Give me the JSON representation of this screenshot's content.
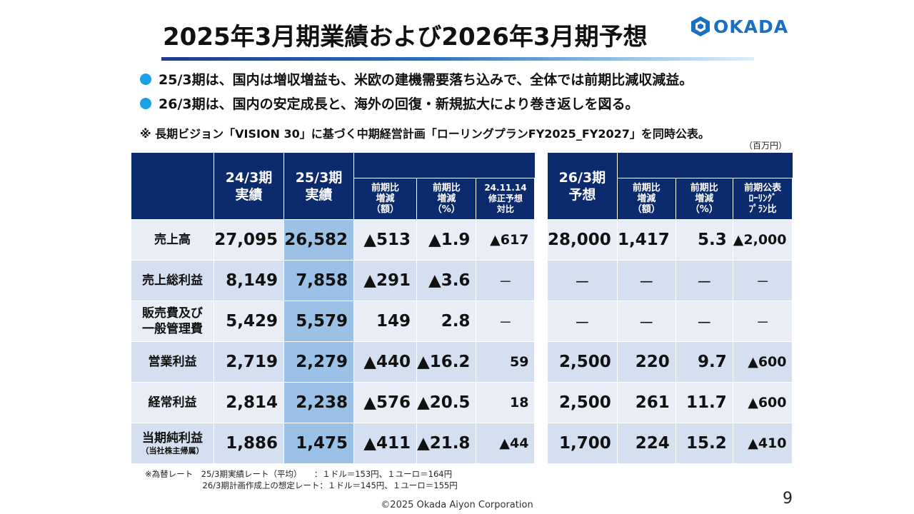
{
  "title": "2025年3月期業績および2026年3月期予想",
  "logo": {
    "text": "OKADA",
    "icon": "okada-hexagon-logo-icon",
    "color": "#1a6fc0"
  },
  "bullets": [
    "25/3期は、国内は増収増益も、米欧の建機需要落ち込みで、全体では前期比減収減益。",
    "26/3期は、国内の安定成長と、海外の回復・新規拡大により巻き返しを図る。"
  ],
  "note": "※ 長期ビジョン「VISION 30」に基づく中期経営計画「ローリングプランFY2025_FY2027」を同時公表。",
  "unit": "（百万円）",
  "left_table": {
    "headers": {
      "fy24_l1": "24/3期",
      "fy24_l2": "実績",
      "fy25_l1": "25/3期",
      "fy25_l2": "実績",
      "diff_amt_l1": "前期比",
      "diff_amt_l2": "増減",
      "diff_amt_l3": "（額）",
      "diff_pct_l1": "前期比",
      "diff_pct_l2": "増減",
      "diff_pct_l3": "（%）",
      "rev_l1": "24.11.14",
      "rev_l2": "修正予想",
      "rev_l3": "対比"
    },
    "rows": [
      {
        "label": "売上高",
        "label2": "",
        "fy24": "27,095",
        "fy25": "26,582",
        "diff_amt": "▲513",
        "diff_pct": "▲1.9",
        "vs_rev": "▲617"
      },
      {
        "label": "売上総利益",
        "label2": "",
        "fy24": "8,149",
        "fy25": "7,858",
        "diff_amt": "▲291",
        "diff_pct": "▲3.6",
        "vs_rev": "－"
      },
      {
        "label": "販売費及び",
        "label2": "一般管理費",
        "fy24": "5,429",
        "fy25": "5,579",
        "diff_amt": "149",
        "diff_pct": "2.8",
        "vs_rev": "－"
      },
      {
        "label": "営業利益",
        "label2": "",
        "fy24": "2,719",
        "fy25": "2,279",
        "diff_amt": "▲440",
        "diff_pct": "▲16.2",
        "vs_rev": "59"
      },
      {
        "label": "経常利益",
        "label2": "",
        "fy24": "2,814",
        "fy25": "2,238",
        "diff_amt": "▲576",
        "diff_pct": "▲20.5",
        "vs_rev": "18"
      },
      {
        "label": "当期純利益",
        "label2": "（当社株主帰属）",
        "fy24": "1,886",
        "fy25": "1,475",
        "diff_amt": "▲411",
        "diff_pct": "▲21.8",
        "vs_rev": "▲44"
      }
    ]
  },
  "right_table": {
    "headers": {
      "fy26_l1": "26/3期",
      "fy26_l2": "予想",
      "diff_amt_l1": "前期比",
      "diff_amt_l2": "増減",
      "diff_amt_l3": "（額）",
      "diff_pct_l1": "前期比",
      "diff_pct_l2": "増減",
      "diff_pct_l3": "（%）",
      "plan_l1": "前期公表",
      "plan_l2": "ﾛｰﾘﾝｸﾞ",
      "plan_l3": "ﾌﾟﾗﾝ比"
    },
    "rows": [
      {
        "fy26": "28,000",
        "diff_amt": "1,417",
        "diff_pct": "5.3",
        "vs_plan": "▲2,000"
      },
      {
        "fy26": "－",
        "diff_amt": "－",
        "diff_pct": "－",
        "vs_plan": "－"
      },
      {
        "fy26": "－",
        "diff_amt": "－",
        "diff_pct": "－",
        "vs_plan": "－"
      },
      {
        "fy26": "2,500",
        "diff_amt": "220",
        "diff_pct": "9.7",
        "vs_plan": "▲600"
      },
      {
        "fy26": "2,500",
        "diff_amt": "261",
        "diff_pct": "11.7",
        "vs_plan": "▲600"
      },
      {
        "fy26": "1,700",
        "diff_amt": "224",
        "diff_pct": "15.2",
        "vs_plan": "▲410"
      }
    ]
  },
  "footnote": {
    "line1": "※為替レート　25/3期実績レート（平均）　　：１ドル＝153円、１ユーロ＝164円",
    "line2": "　　　　　　　26/3期計画作成上の想定レート：１ドル＝145円、１ユーロ＝155円"
  },
  "copyright": "©2025 Okada Aiyon Corporation",
  "page_number": "9",
  "colors": {
    "header_navy": "#0c2a6e",
    "highlight_blue": "#9bc2e6",
    "row_light": "#e9eef6",
    "row_mid": "#d4dfef",
    "bullet_cyan": "#1ca1e6"
  }
}
